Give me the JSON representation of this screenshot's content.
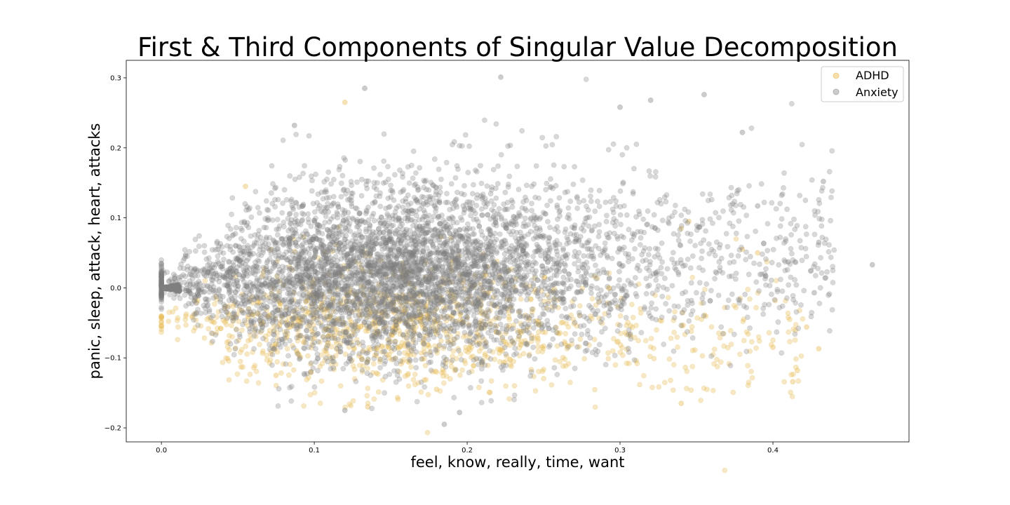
{
  "chart_data": {
    "type": "scatter",
    "title": "First & Third Components of Singular Value Decomposition",
    "xlabel": "feel, know, really, time, want",
    "ylabel": "panic, sleep, attack, heart, attacks",
    "xlim": [
      -0.023,
      0.489
    ],
    "ylim": [
      -0.22,
      0.325
    ],
    "xticks": [
      0.0,
      0.1,
      0.2,
      0.3,
      0.4
    ],
    "xtick_labels": [
      "0.0",
      "0.1",
      "0.2",
      "0.3",
      "0.4"
    ],
    "yticks": [
      -0.2,
      -0.1,
      0.0,
      0.1,
      0.2,
      0.3
    ],
    "ytick_labels": [
      "−0.2",
      "−0.1",
      "0.0",
      "0.1",
      "0.2",
      "0.3"
    ],
    "grid": false,
    "legend_position": "top-right",
    "alpha": 0.3,
    "series": [
      {
        "name": "ADHD",
        "color": "#e6b84a",
        "point_count": 1200,
        "description_points": [
          [
            0.12,
            0.265
          ],
          [
            0.43,
            -0.087
          ],
          [
            0.422,
            -0.056
          ],
          [
            0.416,
            -0.118
          ],
          [
            0.413,
            -0.134
          ],
          [
            0.34,
            -0.165
          ],
          [
            0.34,
            0.085
          ],
          [
            0.345,
            0.095
          ],
          [
            0.18,
            -0.145
          ],
          [
            0.135,
            -0.17
          ],
          [
            0.055,
            0.145
          ],
          [
            0.075,
            -0.125
          ],
          [
            0.38,
            0.055
          ],
          [
            0.39,
            0.05
          ],
          [
            0.4,
            -0.085
          ]
        ]
      },
      {
        "name": "Anxiety",
        "color": "#7f7f7f",
        "point_count": 5200,
        "description_points": [
          [
            0.465,
            0.033
          ],
          [
            0.433,
            0.152
          ],
          [
            0.43,
            0.065
          ],
          [
            0.427,
            -0.007
          ],
          [
            0.355,
            0.276
          ],
          [
            0.222,
            0.301
          ],
          [
            0.133,
            0.285
          ],
          [
            0.185,
            -0.195
          ],
          [
            0.195,
            -0.178
          ],
          [
            0.12,
            -0.175
          ],
          [
            0.32,
            0.268
          ],
          [
            0.3,
            0.258
          ],
          [
            0.38,
            0.222
          ],
          [
            0.39,
            0.117
          ],
          [
            0.41,
            0.037
          ],
          [
            0.087,
            0.232
          ]
        ]
      }
    ]
  }
}
